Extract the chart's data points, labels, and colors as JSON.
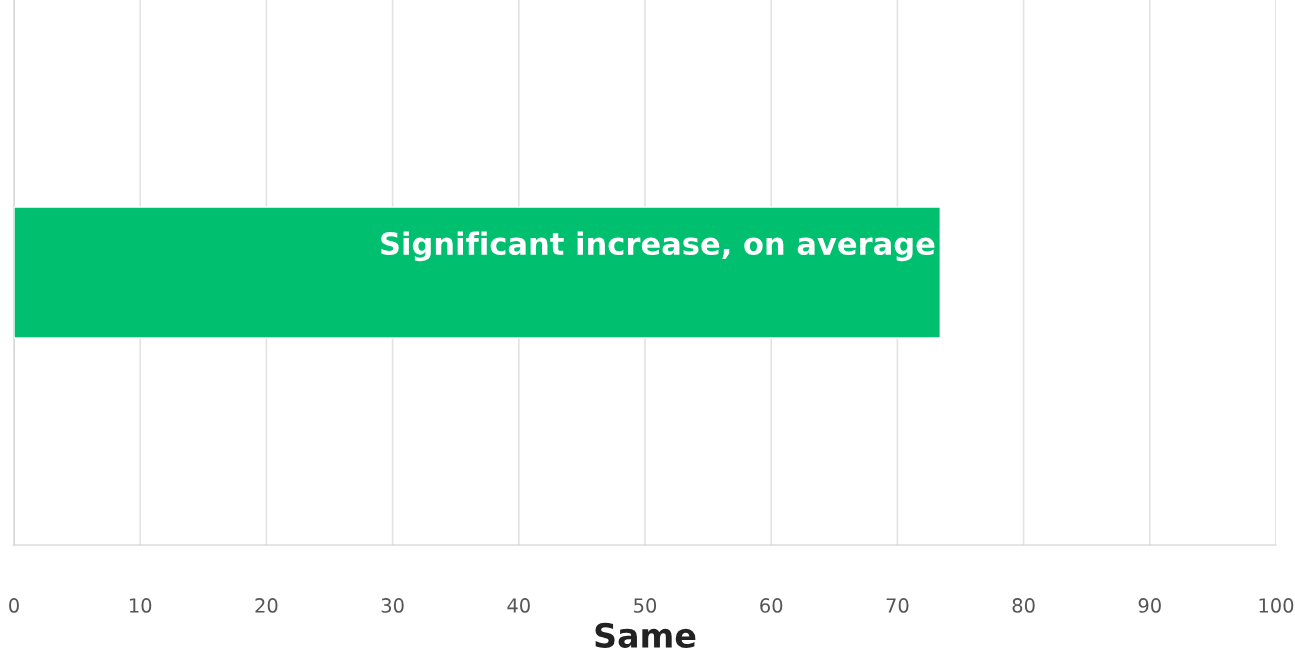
{
  "chart_data": {
    "type": "bar",
    "orientation": "horizontal",
    "categories": [
      null
    ],
    "series": [
      {
        "color": "#00bf6f",
        "values": [
          73.4
        ],
        "value_labels": [
          "Significant increase, on average"
        ]
      }
    ],
    "xlabel": "Same",
    "xlim": [
      0,
      100
    ],
    "xticks": [
      0,
      10,
      20,
      30,
      40,
      50,
      60,
      70,
      80,
      90,
      100
    ],
    "grid": "x",
    "tick_labels": "x",
    "legend": false
  }
}
